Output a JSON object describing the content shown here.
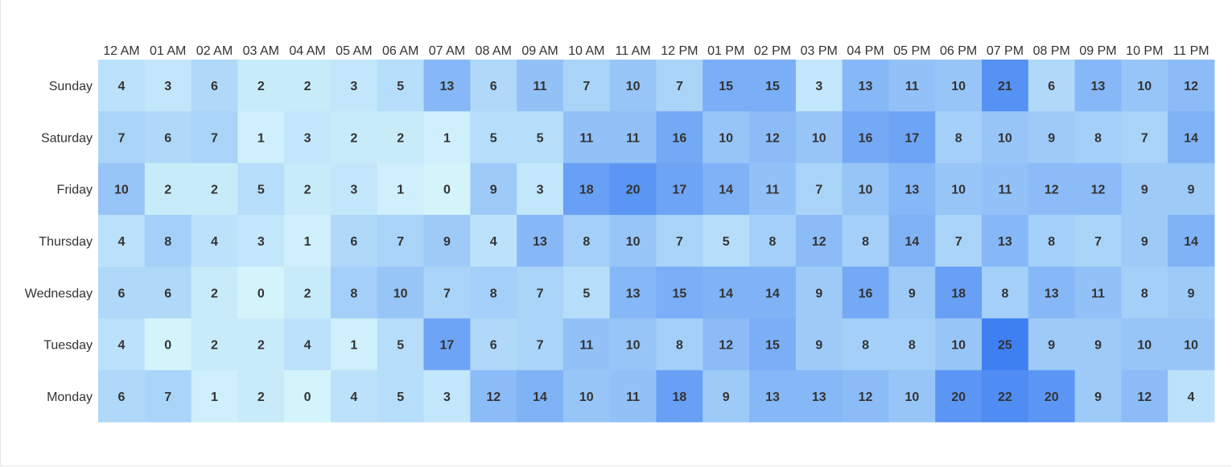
{
  "chart_data": {
    "type": "heatmap",
    "title": "",
    "xlabel": "",
    "ylabel": "",
    "hours": [
      "12 AM",
      "01 AM",
      "02 AM",
      "03 AM",
      "04 AM",
      "05 AM",
      "06 AM",
      "07 AM",
      "08 AM",
      "09 AM",
      "10 AM",
      "11 AM",
      "12 PM",
      "01 PM",
      "02 PM",
      "03 PM",
      "04 PM",
      "05 PM",
      "06 PM",
      "07 PM",
      "08 PM",
      "09 PM",
      "10 PM",
      "11 PM"
    ],
    "days": [
      "Sunday",
      "Saturday",
      "Friday",
      "Thursday",
      "Wednesday",
      "Tuesday",
      "Monday"
    ],
    "values": [
      [
        4,
        3,
        6,
        2,
        2,
        3,
        5,
        13,
        6,
        11,
        7,
        10,
        7,
        15,
        15,
        3,
        13,
        11,
        10,
        21,
        6,
        13,
        10,
        12
      ],
      [
        7,
        6,
        7,
        1,
        3,
        2,
        2,
        1,
        5,
        5,
        11,
        11,
        16,
        10,
        12,
        10,
        16,
        17,
        8,
        10,
        9,
        8,
        7,
        14
      ],
      [
        10,
        2,
        2,
        5,
        2,
        3,
        1,
        0,
        9,
        3,
        18,
        20,
        17,
        14,
        11,
        7,
        10,
        13,
        10,
        11,
        12,
        12,
        9,
        9
      ],
      [
        4,
        8,
        4,
        3,
        1,
        6,
        7,
        9,
        4,
        13,
        8,
        10,
        7,
        5,
        8,
        12,
        8,
        14,
        7,
        13,
        8,
        7,
        9,
        14
      ],
      [
        6,
        6,
        2,
        0,
        2,
        8,
        10,
        7,
        8,
        7,
        5,
        13,
        15,
        14,
        14,
        9,
        16,
        9,
        18,
        8,
        13,
        11,
        8,
        9
      ],
      [
        4,
        0,
        2,
        2,
        4,
        1,
        5,
        17,
        6,
        7,
        11,
        10,
        8,
        12,
        15,
        9,
        8,
        8,
        10,
        25,
        9,
        9,
        10,
        10
      ],
      [
        6,
        7,
        1,
        2,
        0,
        4,
        5,
        3,
        12,
        14,
        10,
        11,
        18,
        9,
        13,
        13,
        12,
        10,
        20,
        22,
        20,
        9,
        12,
        4
      ]
    ],
    "value_range": [
      0,
      25
    ],
    "color_scale": [
      "#d4f4fb",
      "#3e7ff2"
    ],
    "grid": false,
    "legend": "none"
  }
}
